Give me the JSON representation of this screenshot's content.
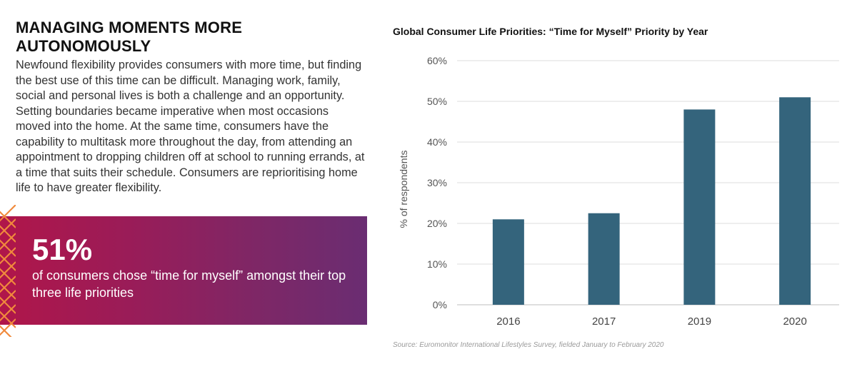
{
  "article": {
    "heading": "MANAGING MOMENTS MORE AUTONOMOUSLY",
    "body": "Newfound flexibility provides consumers with more time, but finding the best use of this time can be difficult. Managing work, family, social and personal lives is both a challenge and an opportunity. Setting boundaries became imperative when most occasions moved into the home. At the same time, consumers have the capability to multitask more throughout the day, from attending an appointment to dropping children off at school to running errands, at a time that suits their schedule. Consumers are reprioritising home life to have greater flexibility."
  },
  "stat": {
    "value": "51%",
    "caption": "of consumers chose “time for myself” amongst their top three life priorities"
  },
  "colors": {
    "bar": "#34647c",
    "banner_start": "#b0164a",
    "banner_end": "#6a2d72",
    "accent_deco": "#f08a3c"
  },
  "chart_data": {
    "type": "bar",
    "title": "Global Consumer Life Priorities: “Time for Myself” Priority by Year",
    "categories": [
      "2016",
      "2017",
      "2019",
      "2020"
    ],
    "values": [
      21,
      22.5,
      48,
      51
    ],
    "ylabel": "% of respondents",
    "xlabel": "",
    "ylim": [
      0,
      60
    ],
    "yticks": [
      "0%",
      "10%",
      "20%",
      "30%",
      "40%",
      "50%",
      "60%"
    ],
    "grid": true,
    "source": "Source: Euromonitor International Lifestyles Survey, fielded January to February 2020"
  }
}
